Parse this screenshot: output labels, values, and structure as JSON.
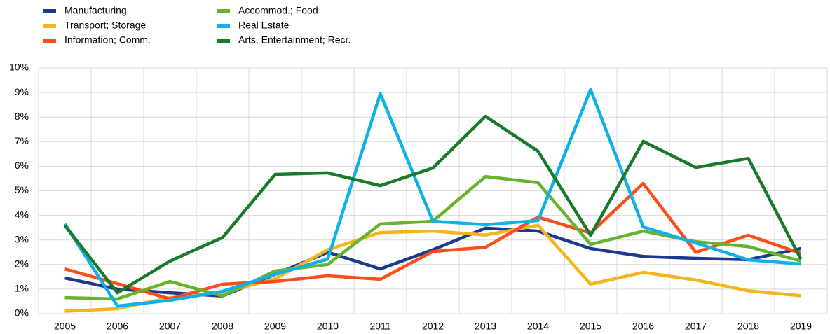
{
  "chart_data": {
    "type": "line",
    "categories": [
      "2005",
      "2006",
      "2007",
      "2008",
      "2009",
      "2010",
      "2011",
      "2012",
      "2013",
      "2014",
      "2015",
      "2016",
      "2017",
      "2018",
      "2019"
    ],
    "series": [
      {
        "name": "Manufacturing",
        "color": "#1b3a8f",
        "values": [
          1.45,
          1.0,
          0.85,
          0.72,
          1.6,
          2.5,
          1.82,
          2.6,
          3.48,
          3.36,
          2.65,
          2.33,
          2.25,
          2.2,
          2.65
        ]
      },
      {
        "name": "Transport; Storage",
        "color": "#f6b31c",
        "values": [
          0.1,
          0.2,
          0.65,
          0.85,
          1.42,
          2.6,
          3.3,
          3.36,
          3.2,
          3.6,
          1.2,
          1.68,
          1.37,
          0.93,
          0.73
        ]
      },
      {
        "name": "Information; Comm.",
        "color": "#ff4c1b",
        "values": [
          1.82,
          1.22,
          0.6,
          1.2,
          1.31,
          1.54,
          1.4,
          2.53,
          2.7,
          3.93,
          3.28,
          5.3,
          2.5,
          3.19,
          2.45
        ]
      },
      {
        "name": "Accommod.; Food",
        "color": "#66b32e",
        "values": [
          0.65,
          0.6,
          1.31,
          0.72,
          1.74,
          2.0,
          3.65,
          3.76,
          5.58,
          5.33,
          2.82,
          3.36,
          2.93,
          2.73,
          2.14
        ]
      },
      {
        "name": "Real Estate",
        "color": "#0fb1e6",
        "values": [
          3.65,
          0.31,
          0.54,
          0.91,
          1.6,
          2.22,
          8.95,
          3.76,
          3.62,
          3.79,
          9.12,
          3.53,
          2.88,
          2.19,
          2.02
        ]
      },
      {
        "name": "Arts, Entertainment; Recr.",
        "color": "#1a7a2c",
        "values": [
          3.59,
          0.85,
          2.14,
          3.1,
          5.67,
          5.73,
          5.21,
          5.93,
          8.03,
          6.61,
          3.19,
          7.01,
          5.95,
          6.32,
          2.22
        ]
      }
    ],
    "ylim": [
      0,
      10
    ],
    "yticks": [
      {
        "value": 0,
        "label": "0%"
      },
      {
        "value": 1,
        "label": "1%"
      },
      {
        "value": 2,
        "label": "2%"
      },
      {
        "value": 3,
        "label": "3%"
      },
      {
        "value": 4,
        "label": "4%"
      },
      {
        "value": 5,
        "label": "5%"
      },
      {
        "value": 6,
        "label": "6%"
      },
      {
        "value": 7,
        "label": "7%"
      },
      {
        "value": 8,
        "label": "8%"
      },
      {
        "value": 9,
        "label": "9%"
      },
      {
        "value": 10,
        "label": "10%"
      }
    ],
    "grid": true
  }
}
